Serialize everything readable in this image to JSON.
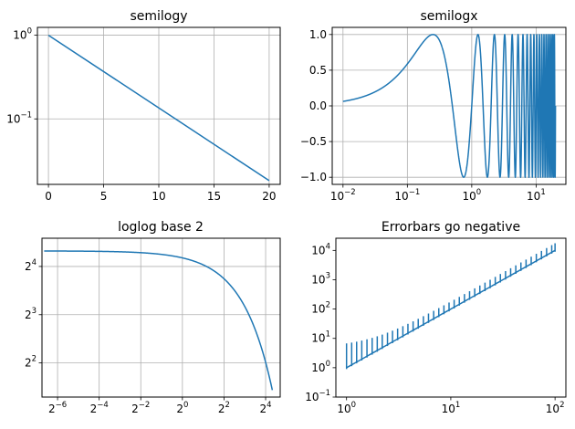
{
  "colors": {
    "line": "#1f77b4",
    "grid": "#b0b0b0",
    "axes": "#000000",
    "background": "#ffffff"
  },
  "chart_data": [
    {
      "type": "line",
      "title": "semilogy",
      "xscale": "linear",
      "yscale": "log",
      "grid": true,
      "xlim": [
        -1,
        21
      ],
      "ylim": [
        0.0165,
        1.24
      ],
      "xticks": [
        {
          "v": 0,
          "label": "0"
        },
        {
          "v": 5,
          "label": "5"
        },
        {
          "v": 10,
          "label": "10"
        },
        {
          "v": 15,
          "label": "15"
        },
        {
          "v": 20,
          "label": "20"
        }
      ],
      "yticks": [
        {
          "v": 1,
          "base": "10",
          "exp": "0"
        },
        {
          "v": 0.1,
          "base": "10",
          "exp": "−1"
        }
      ],
      "x": [
        0,
        20
      ],
      "y": [
        1,
        0.0183
      ]
    },
    {
      "type": "line",
      "title": "semilogx",
      "xscale": "log",
      "yscale": "linear",
      "grid": true,
      "xlim": [
        0.0068,
        29
      ],
      "ylim": [
        -1.1,
        1.1
      ],
      "xticks": [
        {
          "v": 0.01,
          "base": "10",
          "exp": "−2"
        },
        {
          "v": 0.1,
          "base": "10",
          "exp": "−1"
        },
        {
          "v": 1,
          "base": "10",
          "exp": "0"
        },
        {
          "v": 10,
          "base": "10",
          "exp": "1"
        }
      ],
      "yticks": [
        {
          "v": 1,
          "label": "1.0"
        },
        {
          "v": 0.5,
          "label": "0.5"
        },
        {
          "v": 0,
          "label": "0.0"
        },
        {
          "v": -0.5,
          "label": "−0.5"
        },
        {
          "v": -1,
          "label": "−1.0"
        }
      ],
      "function": "sin(2πx)",
      "x_range": [
        0.01,
        20
      ]
    },
    {
      "type": "line",
      "title": "loglog base 2",
      "xscale": "log2",
      "yscale": "log2",
      "grid": true,
      "xlim": [
        0.0093,
        26
      ],
      "ylim": [
        2.45,
        24
      ],
      "xticks": [
        {
          "v": 0.015625,
          "base": "2",
          "exp": "−6"
        },
        {
          "v": 0.0625,
          "base": "2",
          "exp": "−4"
        },
        {
          "v": 0.25,
          "base": "2",
          "exp": "−2"
        },
        {
          "v": 1,
          "base": "2",
          "exp": "0"
        },
        {
          "v": 4,
          "base": "2",
          "exp": "2"
        },
        {
          "v": 16,
          "base": "2",
          "exp": "4"
        }
      ],
      "yticks": [
        {
          "v": 16,
          "base": "2",
          "exp": "4"
        },
        {
          "v": 8,
          "base": "2",
          "exp": "3"
        },
        {
          "v": 4,
          "base": "2",
          "exp": "2"
        }
      ],
      "function": "20·exp(−x/10)",
      "x_range": [
        0.01,
        20
      ]
    },
    {
      "type": "line",
      "title": "Errorbars go negative",
      "xscale": "log",
      "yscale": "log",
      "grid": false,
      "xlim": [
        0.79,
        127
      ],
      "ylim": [
        0.1,
        26000
      ],
      "xticks": [
        {
          "v": 1,
          "base": "10",
          "exp": "0"
        },
        {
          "v": 10,
          "base": "10",
          "exp": "1"
        },
        {
          "v": 100,
          "base": "10",
          "exp": "2"
        }
      ],
      "yticks": [
        {
          "v": 10000,
          "base": "10",
          "exp": "4"
        },
        {
          "v": 1000,
          "base": "10",
          "exp": "3"
        },
        {
          "v": 100,
          "base": "10",
          "exp": "2"
        },
        {
          "v": 10,
          "base": "10",
          "exp": "1"
        },
        {
          "v": 1,
          "base": "10",
          "exp": "0"
        },
        {
          "v": 0.1,
          "base": "10",
          "exp": "−1"
        }
      ],
      "function": "y = x², error = 0.1·y, yerr = 5 + 0.75·y",
      "x_points": [
        1,
        1.12,
        1.25,
        1.4,
        1.57,
        1.76,
        1.97,
        2.2,
        2.47,
        2.76,
        3.09,
        3.47,
        3.88,
        4.35,
        4.87,
        5.46,
        6.11,
        6.85,
        7.67,
        8.59,
        9.62,
        10.77,
        12.07,
        13.52,
        15.14,
        16.96,
        19,
        21.28,
        23.84,
        26.7,
        29.9,
        33.5,
        37.5,
        42.01,
        47.06,
        52.71,
        59.04,
        66.13,
        74.07,
        82.97,
        92.93,
        100
      ]
    }
  ]
}
